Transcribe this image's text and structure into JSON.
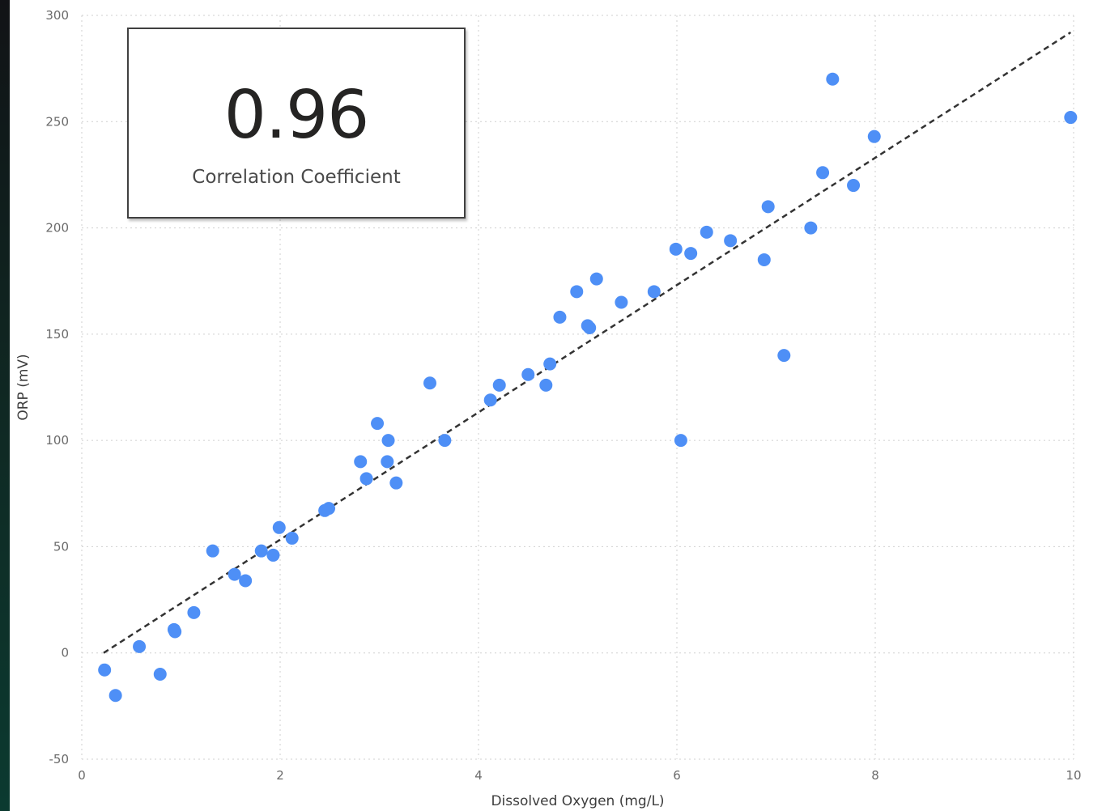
{
  "kpi": {
    "value": "0.96",
    "label": "Correlation Coefficient"
  },
  "chart_data": {
    "type": "scatter",
    "title": "",
    "xlabel": "Dissolved Oxygen (mg/L)",
    "ylabel": "ORP (mV)",
    "xlim": [
      0,
      10
    ],
    "ylim": [
      -50,
      300
    ],
    "xticks": [
      0,
      2,
      4,
      6,
      8,
      10
    ],
    "yticks": [
      -50,
      0,
      50,
      100,
      150,
      200,
      250,
      300
    ],
    "grid": true,
    "point_color": "#4E8FF6",
    "trendline": {
      "style": "dashed",
      "color": "#333333",
      "from": [
        0.22,
        0
      ],
      "to": [
        9.97,
        292
      ]
    },
    "points": [
      [
        0.23,
        -8
      ],
      [
        0.34,
        -20
      ],
      [
        0.58,
        3
      ],
      [
        0.79,
        -10
      ],
      [
        0.93,
        11
      ],
      [
        0.94,
        10
      ],
      [
        1.13,
        19
      ],
      [
        1.32,
        48
      ],
      [
        1.54,
        37
      ],
      [
        1.65,
        34
      ],
      [
        1.81,
        48
      ],
      [
        1.93,
        46
      ],
      [
        1.99,
        59
      ],
      [
        2.12,
        54
      ],
      [
        2.45,
        67
      ],
      [
        2.49,
        68
      ],
      [
        2.81,
        90
      ],
      [
        2.87,
        82
      ],
      [
        2.98,
        108
      ],
      [
        3.08,
        90
      ],
      [
        3.09,
        100
      ],
      [
        3.17,
        80
      ],
      [
        3.51,
        127
      ],
      [
        3.66,
        100
      ],
      [
        4.12,
        119
      ],
      [
        4.21,
        126
      ],
      [
        4.5,
        131
      ],
      [
        4.68,
        126
      ],
      [
        4.72,
        136
      ],
      [
        4.82,
        158
      ],
      [
        4.99,
        170
      ],
      [
        5.1,
        154
      ],
      [
        5.12,
        153
      ],
      [
        5.19,
        176
      ],
      [
        5.44,
        165
      ],
      [
        5.77,
        170
      ],
      [
        5.99,
        190
      ],
      [
        6.04,
        100
      ],
      [
        6.14,
        188
      ],
      [
        6.3,
        198
      ],
      [
        6.54,
        194
      ],
      [
        6.88,
        185
      ],
      [
        6.92,
        210
      ],
      [
        7.08,
        140
      ],
      [
        7.35,
        200
      ],
      [
        7.47,
        226
      ],
      [
        7.57,
        270
      ],
      [
        7.78,
        220
      ],
      [
        7.99,
        243
      ],
      [
        9.97,
        252
      ]
    ]
  }
}
